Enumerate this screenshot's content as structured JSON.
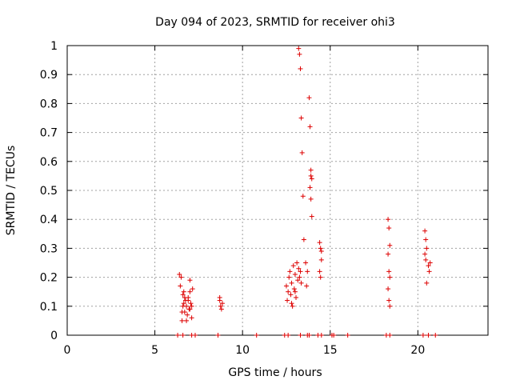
{
  "chart_data": {
    "type": "scatter",
    "title": "Day 094 of 2023, SRMTID for receiver ohi3",
    "xlabel": "GPS time / hours",
    "ylabel": "SRMTID / TECUs",
    "xlim": [
      0,
      24
    ],
    "ylim": [
      0,
      1
    ],
    "xticks": [
      "0",
      "5",
      "10",
      "15",
      "20"
    ],
    "yticks": [
      "0",
      "0.1",
      "0.2",
      "0.3",
      "0.4",
      "0.5",
      "0.6",
      "0.7",
      "0.8",
      "0.9",
      "1"
    ],
    "grid": true,
    "marker": "+",
    "color": "#dd0000",
    "series": [
      {
        "name": "SRMTID",
        "points": [
          [
            6.4,
            0.21
          ],
          [
            6.45,
            0.17
          ],
          [
            6.5,
            0.2
          ],
          [
            6.55,
            0.05
          ],
          [
            6.6,
            0.14
          ],
          [
            6.65,
            0.11
          ],
          [
            6.7,
            0.08
          ],
          [
            6.75,
            0.12
          ],
          [
            6.8,
            0.1
          ],
          [
            6.85,
            0.07
          ],
          [
            6.9,
            0.13
          ],
          [
            6.95,
            0.09
          ],
          [
            7.0,
            0.15
          ],
          [
            7.05,
            0.11
          ],
          [
            7.1,
            0.06
          ],
          [
            7.15,
            0.16
          ],
          [
            7.0,
            0.19
          ],
          [
            6.6,
            0.1
          ],
          [
            6.7,
            0.13
          ],
          [
            6.8,
            0.05
          ],
          [
            6.9,
            0.12
          ],
          [
            7.0,
            0.09
          ],
          [
            7.1,
            0.1
          ],
          [
            6.55,
            0.08
          ],
          [
            6.65,
            0.15
          ],
          [
            8.7,
            0.12
          ],
          [
            8.75,
            0.1
          ],
          [
            8.8,
            0.09
          ],
          [
            8.85,
            0.11
          ],
          [
            8.7,
            0.13
          ],
          [
            12.5,
            0.17
          ],
          [
            12.55,
            0.12
          ],
          [
            12.6,
            0.15
          ],
          [
            12.65,
            0.2
          ],
          [
            12.7,
            0.22
          ],
          [
            12.75,
            0.14
          ],
          [
            12.8,
            0.18
          ],
          [
            12.85,
            0.1
          ],
          [
            12.9,
            0.24
          ],
          [
            12.95,
            0.16
          ],
          [
            13.0,
            0.21
          ],
          [
            13.05,
            0.13
          ],
          [
            13.1,
            0.25
          ],
          [
            13.15,
            0.19
          ],
          [
            13.2,
            0.23
          ],
          [
            13.25,
            0.2
          ],
          [
            13.3,
            0.22
          ],
          [
            13.35,
            0.18
          ],
          [
            12.8,
            0.11
          ],
          [
            13.0,
            0.15
          ],
          [
            13.2,
            0.99
          ],
          [
            13.25,
            0.97
          ],
          [
            13.3,
            0.92
          ],
          [
            13.35,
            0.75
          ],
          [
            13.4,
            0.63
          ],
          [
            13.45,
            0.48
          ],
          [
            13.5,
            0.33
          ],
          [
            13.6,
            0.25
          ],
          [
            13.65,
            0.17
          ],
          [
            13.7,
            0.22
          ],
          [
            13.8,
            0.82
          ],
          [
            13.85,
            0.72
          ],
          [
            13.9,
            0.57
          ],
          [
            13.9,
            0.55
          ],
          [
            13.95,
            0.54
          ],
          [
            13.85,
            0.51
          ],
          [
            13.9,
            0.47
          ],
          [
            13.95,
            0.41
          ],
          [
            14.4,
            0.32
          ],
          [
            14.45,
            0.3
          ],
          [
            14.5,
            0.26
          ],
          [
            14.4,
            0.22
          ],
          [
            14.45,
            0.2
          ],
          [
            14.5,
            0.29
          ],
          [
            18.3,
            0.4
          ],
          [
            18.35,
            0.37
          ],
          [
            18.4,
            0.31
          ],
          [
            18.3,
            0.28
          ],
          [
            18.35,
            0.22
          ],
          [
            18.4,
            0.2
          ],
          [
            18.3,
            0.16
          ],
          [
            18.35,
            0.12
          ],
          [
            18.4,
            0.1
          ],
          [
            20.4,
            0.36
          ],
          [
            20.45,
            0.33
          ],
          [
            20.5,
            0.3
          ],
          [
            20.4,
            0.28
          ],
          [
            20.45,
            0.26
          ],
          [
            20.6,
            0.24
          ],
          [
            20.65,
            0.22
          ],
          [
            20.5,
            0.18
          ],
          [
            20.7,
            0.25
          ],
          [
            6.3,
            0.0
          ],
          [
            6.6,
            0.0
          ],
          [
            7.1,
            0.0
          ],
          [
            7.3,
            0.0
          ],
          [
            8.6,
            0.0
          ],
          [
            10.8,
            0.0
          ],
          [
            12.4,
            0.0
          ],
          [
            12.6,
            0.0
          ],
          [
            13.3,
            0.0
          ],
          [
            13.7,
            0.0
          ],
          [
            13.8,
            0.0
          ],
          [
            14.3,
            0.0
          ],
          [
            14.5,
            0.0
          ],
          [
            15.1,
            0.0
          ],
          [
            15.2,
            0.0
          ],
          [
            16.0,
            0.0
          ],
          [
            18.2,
            0.0
          ],
          [
            18.4,
            0.0
          ],
          [
            20.3,
            0.0
          ],
          [
            20.6,
            0.0
          ],
          [
            21.0,
            0.0
          ]
        ]
      }
    ]
  }
}
